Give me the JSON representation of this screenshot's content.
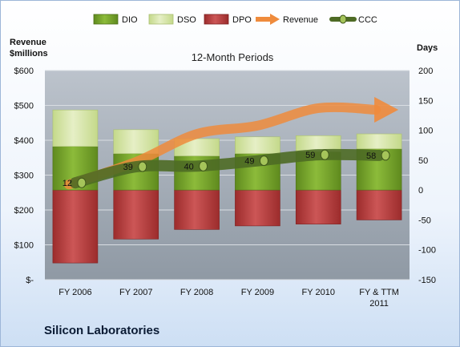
{
  "chart_data": {
    "type": "bar",
    "title": "12-Month Periods",
    "company": "Silicon Laboratories",
    "left_axis_title": [
      "Revenue",
      "$millions"
    ],
    "right_axis_title": "Days",
    "categories": [
      "FY 2006",
      "FY 2007",
      "FY 2008",
      "FY 2009",
      "FY 2010",
      "FY & TTM 2011"
    ],
    "category_lines": [
      [
        "FY 2006"
      ],
      [
        "FY 2007"
      ],
      [
        "FY 2008"
      ],
      [
        "FY 2009"
      ],
      [
        "FY 2010"
      ],
      [
        "FY & TTM",
        "2011"
      ]
    ],
    "left_ticks": [
      "$-",
      "$100",
      "$200",
      "$300",
      "$400",
      "$500",
      "$600"
    ],
    "left_ylim": [
      0,
      600
    ],
    "right_ticks": [
      "-150",
      "-100",
      "-50",
      "0",
      "50",
      "100",
      "150",
      "200"
    ],
    "right_ylim": [
      -150,
      200
    ],
    "legend": [
      "DIO",
      "DSO",
      "DPO",
      "Revenue",
      "CCC"
    ],
    "legend_position": "top",
    "series": [
      {
        "name": "DIO",
        "axis": "right",
        "values": [
          73,
          61,
          57,
          61,
          64,
          69
        ]
      },
      {
        "name": "DSO",
        "axis": "right",
        "values": [
          61,
          40,
          29,
          28,
          27,
          25
        ]
      },
      {
        "name": "DPO",
        "axis": "right",
        "values": [
          -122,
          -82,
          -66,
          -60,
          -57,
          -50
        ]
      },
      {
        "name": "Revenue",
        "axis": "left",
        "values": [
          273,
          338,
          418,
          442,
          492,
          492
        ]
      },
      {
        "name": "CCC",
        "axis": "right",
        "values": [
          12,
          39,
          40,
          49,
          59,
          58
        ]
      }
    ],
    "ccc_labels": [
      "12",
      "39",
      "40",
      "49",
      "59",
      "58"
    ],
    "colors": {
      "dio": "#76a12a",
      "dso": "#d6e4a6",
      "dpo": "#b83c3c",
      "revenue": "#ef8b3c",
      "ccc": "#4e6b25"
    }
  }
}
